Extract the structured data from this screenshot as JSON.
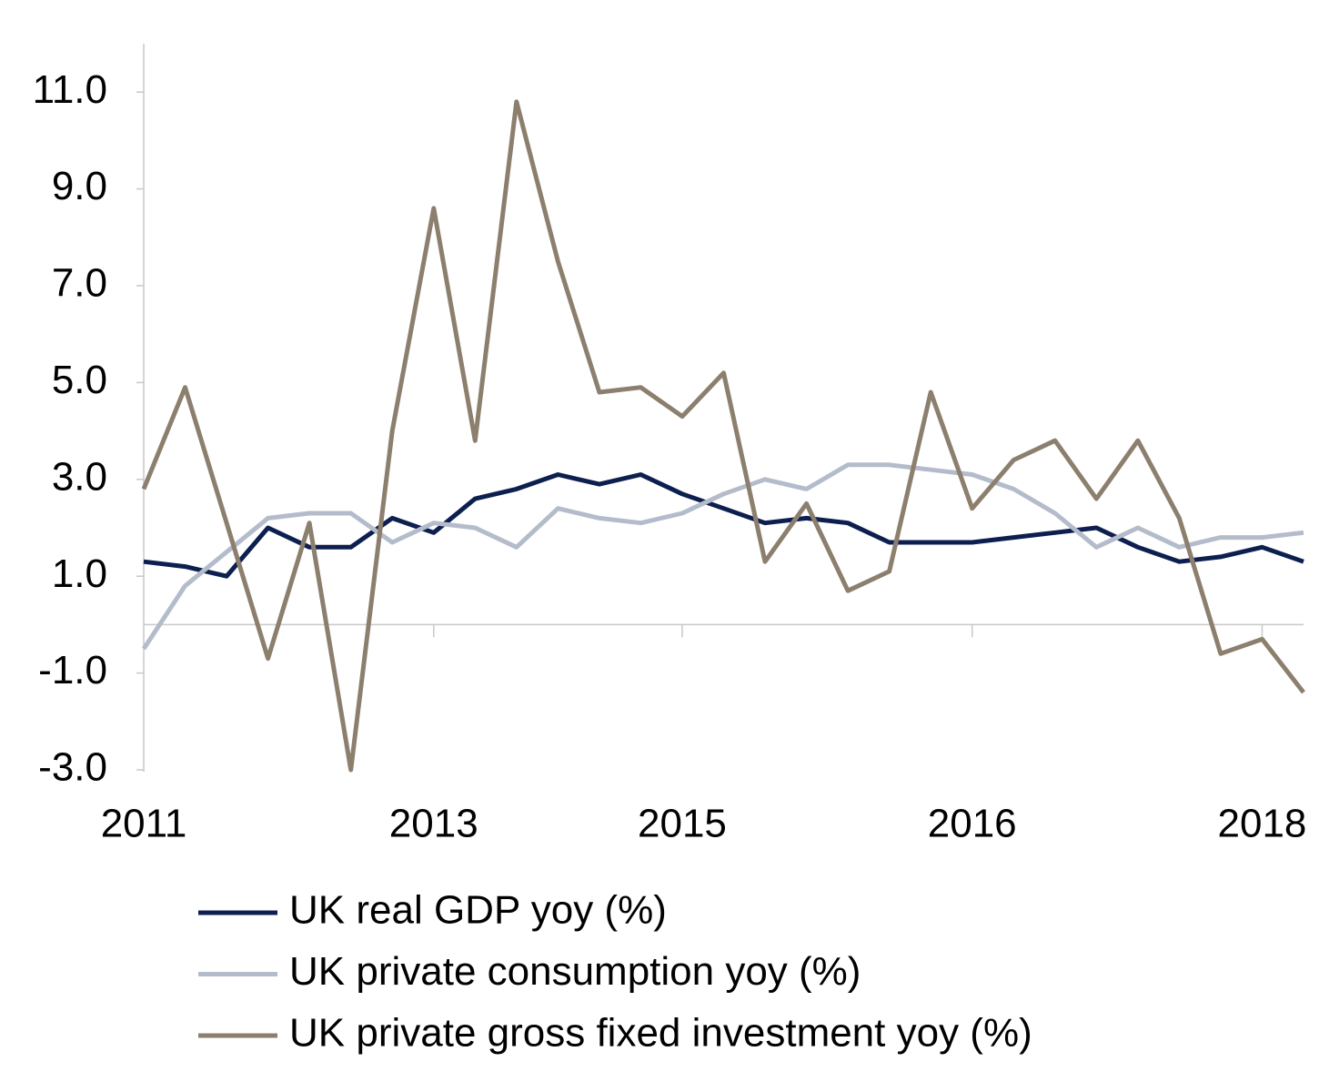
{
  "chart_data": {
    "type": "line",
    "categories": [
      "2011",
      null,
      null,
      null,
      null,
      null,
      null,
      "2013",
      null,
      null,
      null,
      null,
      null,
      "2015",
      null,
      null,
      null,
      null,
      null,
      null,
      "2016",
      null,
      null,
      null,
      null,
      null,
      null,
      "2018",
      null
    ],
    "series": [
      {
        "name": "UK real GDP yoy (%)",
        "color": "#0d1f4f",
        "values": [
          1.3,
          1.2,
          1.0,
          2.0,
          1.6,
          1.6,
          2.2,
          1.9,
          2.6,
          2.8,
          3.1,
          2.9,
          3.1,
          2.7,
          2.4,
          2.1,
          2.2,
          2.1,
          1.7,
          1.7,
          1.7,
          1.8,
          1.9,
          2.0,
          1.6,
          1.3,
          1.4,
          1.6,
          1.3
        ]
      },
      {
        "name": "UK private consumption yoy (%)",
        "color": "#b4bccb",
        "values": [
          -0.5,
          0.8,
          1.5,
          2.2,
          2.3,
          2.3,
          1.7,
          2.1,
          2.0,
          1.6,
          2.4,
          2.2,
          2.1,
          2.3,
          2.7,
          3.0,
          2.8,
          3.3,
          3.3,
          3.2,
          3.1,
          2.8,
          2.3,
          1.6,
          2.0,
          1.6,
          1.8,
          1.8,
          1.9
        ]
      },
      {
        "name": "UK private gross fixed investment yoy (%)",
        "color": "#8c7f6e",
        "values": [
          2.8,
          4.9,
          2.1,
          -0.7,
          2.1,
          -3.0,
          4.0,
          8.6,
          3.8,
          10.8,
          7.5,
          4.8,
          4.9,
          4.3,
          5.2,
          1.3,
          2.5,
          0.7,
          1.1,
          4.8,
          2.4,
          3.4,
          3.8,
          2.6,
          3.8,
          2.2,
          -0.6,
          -0.3,
          -1.4
        ]
      }
    ],
    "ylim": [
      -3,
      12
    ],
    "yticks": [
      {
        "value": -3,
        "label": "-3.0"
      },
      {
        "value": -1,
        "label": "-1.0"
      },
      {
        "value": 1,
        "label": "1.0"
      },
      {
        "value": 3,
        "label": "3.0"
      },
      {
        "value": 5,
        "label": "5.0"
      },
      {
        "value": 7,
        "label": "7.0"
      },
      {
        "value": 9,
        "label": "9.0"
      },
      {
        "value": 11,
        "label": "11.0"
      }
    ],
    "grid": false
  }
}
